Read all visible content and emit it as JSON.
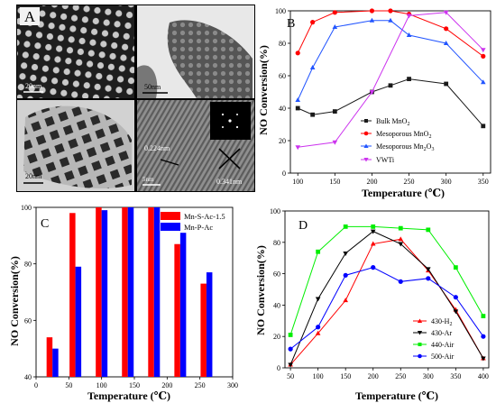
{
  "panel_a": {
    "letter": "A",
    "scale_bars": [
      "20nm",
      "50nm",
      "20nm",
      "5nm"
    ],
    "lattice_labels": [
      "0.224nm",
      "0.341nm"
    ]
  },
  "colors": {
    "black": "#000000",
    "red": "#ff0000",
    "blue": "#0000ff",
    "green": "#00ee00",
    "magenta": "#e000e0",
    "bulk_line": "#1a1a1a",
    "blue_b": "#2255ff",
    "violet_b": "#cc33ee"
  },
  "chart_data": [
    {
      "id": "B",
      "type": "line",
      "letter": "B",
      "xlabel": "Temperature (℃)",
      "ylabel": "NO Conversion(%)",
      "xlim": [
        90,
        360
      ],
      "ylim": [
        0,
        100
      ],
      "xticks": [
        100,
        150,
        200,
        250,
        300,
        350
      ],
      "yticks": [
        0,
        20,
        40,
        60,
        80,
        100
      ],
      "legend_position": "lower-left",
      "series": [
        {
          "name": "Bulk MnO",
          "sub": "2",
          "color": "#1a1a1a",
          "marker": "square",
          "x": [
            100,
            120,
            150,
            200,
            225,
            250,
            300,
            350
          ],
          "y": [
            40,
            36,
            38,
            50,
            54,
            58,
            55,
            29
          ]
        },
        {
          "name": "Mesoporous MnO",
          "sub": "2",
          "color": "#ff0000",
          "marker": "circle",
          "x": [
            100,
            120,
            150,
            200,
            225,
            250,
            300,
            350
          ],
          "y": [
            74,
            93,
            99,
            100,
            100,
            98,
            89,
            72
          ]
        },
        {
          "name": "Mesoporous Mn",
          "sub": "2",
          "name2": "O",
          "sub2": "3",
          "color": "#2255ff",
          "marker": "triangle",
          "x": [
            100,
            120,
            150,
            200,
            225,
            250,
            300,
            350
          ],
          "y": [
            45,
            65,
            90,
            94,
            94,
            85,
            80,
            56
          ]
        },
        {
          "name": "VWTi",
          "color": "#cc33ee",
          "marker": "tri-down",
          "x": [
            100,
            150,
            200,
            250,
            300,
            350
          ],
          "y": [
            16,
            19,
            50,
            97,
            99,
            76
          ]
        }
      ]
    },
    {
      "id": "C",
      "type": "bar",
      "letter": "C",
      "xlabel": "Temperature (℃)",
      "ylabel": "NO Conversion(%)",
      "xlim": [
        0,
        300
      ],
      "ylim": [
        40,
        100
      ],
      "xticks": [
        0,
        50,
        100,
        150,
        200,
        250,
        300
      ],
      "yticks": [
        40,
        60,
        80,
        100
      ],
      "legend_position": "top-right",
      "x": [
        25,
        60,
        100,
        140,
        180,
        220,
        260
      ],
      "series": [
        {
          "name": "Mn-S-Ac-1.5",
          "color": "#ff0000",
          "values": [
            54,
            98,
            100,
            100,
            100,
            87,
            73
          ]
        },
        {
          "name": "Mn-P-Ac",
          "color": "#0000ff",
          "values": [
            50,
            79,
            99,
            100,
            100,
            91,
            77
          ]
        }
      ]
    },
    {
      "id": "D",
      "type": "line",
      "letter": "D",
      "xlabel": "Temperature (℃)",
      "ylabel": "NO Conversion(%)",
      "xlim": [
        40,
        410
      ],
      "ylim": [
        0,
        100
      ],
      "xticks": [
        50,
        100,
        150,
        200,
        250,
        300,
        350,
        400
      ],
      "yticks": [
        0,
        20,
        40,
        60,
        80,
        100
      ],
      "legend_position": "bottom-right",
      "series": [
        {
          "name": "430-H",
          "sub": "2",
          "color": "#ff0000",
          "marker": "triangle",
          "x": [
            50,
            100,
            150,
            200,
            250,
            300,
            350,
            400
          ],
          "y": [
            2,
            22,
            43,
            79,
            82,
            62,
            37,
            6
          ]
        },
        {
          "name": "430-Ar",
          "color": "#000000",
          "marker": "tri-down",
          "x": [
            50,
            100,
            150,
            200,
            250,
            300,
            350,
            400
          ],
          "y": [
            2,
            44,
            73,
            87,
            79,
            63,
            36,
            6
          ]
        },
        {
          "name": "440-Air",
          "color": "#00ee00",
          "marker": "square",
          "x": [
            50,
            100,
            150,
            200,
            250,
            300,
            350,
            400
          ],
          "y": [
            21,
            74,
            90,
            90,
            89,
            88,
            64,
            33
          ]
        },
        {
          "name": "500-Air",
          "color": "#0000ff",
          "marker": "circle",
          "x": [
            50,
            100,
            150,
            200,
            250,
            300,
            350,
            400
          ],
          "y": [
            12,
            26,
            59,
            64,
            55,
            57,
            45,
            20
          ]
        }
      ]
    }
  ]
}
